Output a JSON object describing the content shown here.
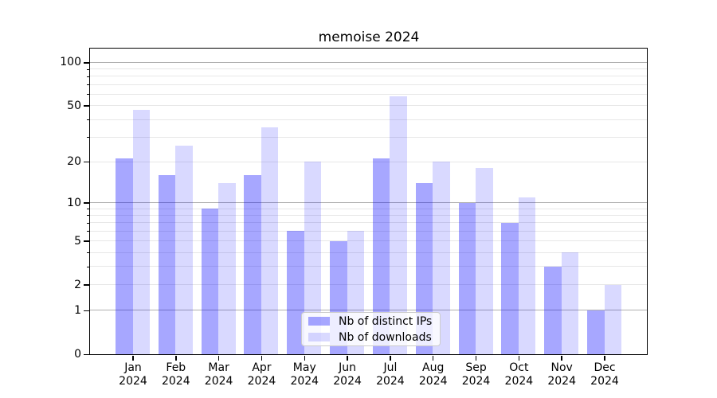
{
  "chart_data": {
    "type": "bar",
    "title": "memoise 2024",
    "categories": [
      "Jan 2024",
      "Feb 2024",
      "Mar 2024",
      "Apr 2024",
      "May 2024",
      "Jun 2024",
      "Jul 2024",
      "Aug 2024",
      "Sep 2024",
      "Oct 2024",
      "Nov 2024",
      "Dec 2024"
    ],
    "series": [
      {
        "name": "Nb of distinct IPs",
        "color": "#a7a7f2",
        "fill": "rgba(0,0,255,0.345)",
        "values": [
          21,
          16,
          9,
          16,
          6,
          5,
          21,
          14,
          10,
          7,
          3,
          1
        ]
      },
      {
        "name": "Nb of downloads",
        "color": "#d9d9f8",
        "fill": "rgba(0,0,255,0.15)",
        "values": [
          47,
          26,
          14,
          35,
          20,
          6,
          58,
          20,
          18,
          11,
          4,
          2
        ]
      }
    ],
    "xlabel": "",
    "ylabel": "",
    "yscale": "log1p",
    "ylim": [
      0,
      125
    ],
    "yticks": [
      0,
      1,
      2,
      5,
      10,
      20,
      50,
      100
    ],
    "major_gridlines": [
      1,
      10,
      100
    ],
    "minor_gridlines": [
      2,
      3,
      4,
      5,
      6,
      7,
      8,
      9,
      20,
      30,
      40,
      50,
      60,
      70,
      80,
      90
    ],
    "grid": true,
    "legend_position": "lower center"
  },
  "colors": {
    "bar_dark": "#a7a7f2",
    "bar_light": "#d9d9f8",
    "grid_major": "#b0b0b0",
    "grid_minor": "#e7e7e7",
    "axis": "#000000",
    "legend_border": "#cccccc"
  }
}
